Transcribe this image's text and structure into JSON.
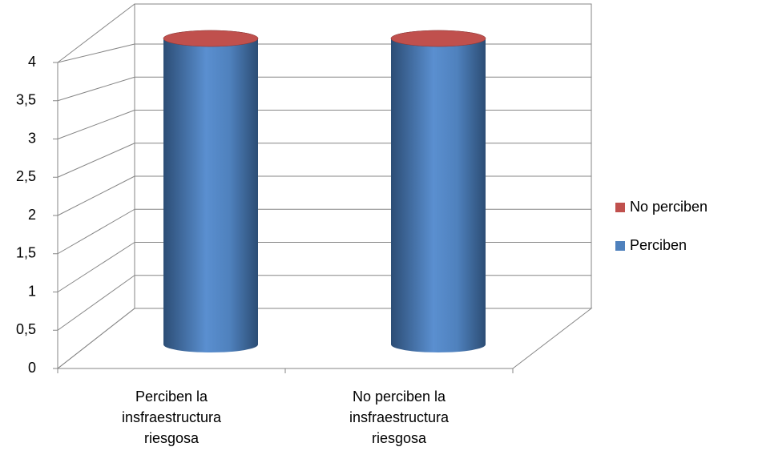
{
  "chart_data": {
    "type": "bar3d",
    "categories": [
      "Perciben la insfraestructura riesgosa",
      "No perciben la insfraestructura riesgosa"
    ],
    "series": [
      {
        "name": "Perciben",
        "color": "#4f81bd",
        "values": [
          4,
          4
        ]
      },
      {
        "name": "No perciben",
        "color": "#c0504d",
        "values": [
          0,
          0
        ]
      }
    ],
    "ylim": [
      0,
      4
    ],
    "yticks": [
      0,
      {
        "value": 0.5,
        "label": "0,5"
      },
      1,
      {
        "value": 1.5,
        "label": "1,5"
      },
      2,
      {
        "value": 2.5,
        "label": "2,5"
      },
      3,
      {
        "value": 3.5,
        "label": "3,5"
      },
      4
    ],
    "grid": true,
    "legend": "right"
  }
}
